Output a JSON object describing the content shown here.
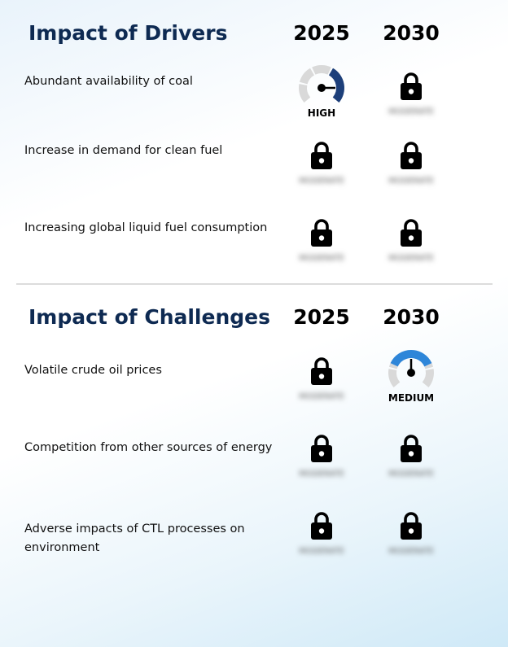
{
  "drivers": {
    "title": "Impact of Drivers",
    "year_a": "2025",
    "year_b": "2030",
    "rows": [
      {
        "label": "Abundant availability of coal",
        "a": {
          "type": "gauge",
          "level": "HIGH",
          "color": "#1d3f7a"
        },
        "b": {
          "type": "lock",
          "blur": "MODERATE"
        }
      },
      {
        "label": "Increase in demand for clean fuel",
        "a": {
          "type": "lock",
          "blur": "MODERATE"
        },
        "b": {
          "type": "lock",
          "blur": "MODERATE"
        }
      },
      {
        "label": "Increasing global liquid fuel consumption",
        "a": {
          "type": "lock",
          "blur": "MODERATE"
        },
        "b": {
          "type": "lock",
          "blur": "MODERATE"
        }
      }
    ]
  },
  "challenges": {
    "title": "Impact of Challenges",
    "year_a": "2025",
    "year_b": "2030",
    "rows": [
      {
        "label": "Volatile crude oil prices",
        "a": {
          "type": "lock",
          "blur": "MODERATE"
        },
        "b": {
          "type": "gauge",
          "level": "MEDIUM",
          "color": "#2e86d9"
        }
      },
      {
        "label": "Competition from other sources of energy",
        "a": {
          "type": "lock",
          "blur": "MODERATE"
        },
        "b": {
          "type": "lock",
          "blur": "MODERATE"
        }
      },
      {
        "label": "Adverse impacts of CTL processes on environment",
        "a": {
          "type": "lock",
          "blur": "MODERATE"
        },
        "b": {
          "type": "lock",
          "blur": "MODERATE"
        }
      }
    ]
  }
}
